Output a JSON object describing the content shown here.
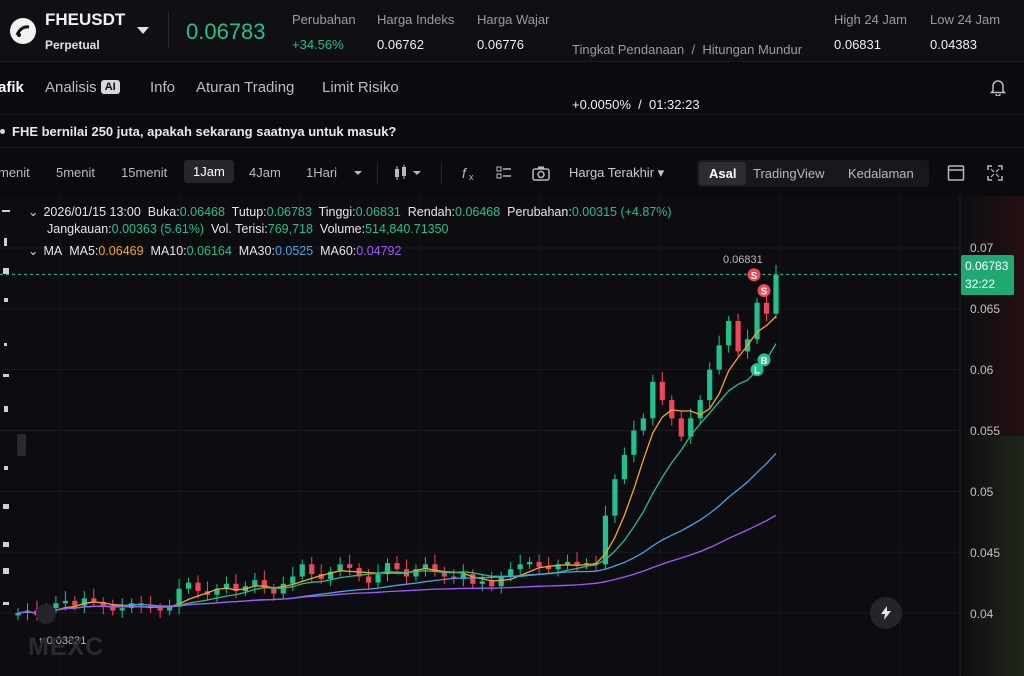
{
  "ticker": {
    "symbol": "FHEUSDT",
    "contract_type": "Perpetual",
    "last_price": "0.06783",
    "stats": [
      {
        "label": "Perubahan",
        "value": "+34.56%"
      },
      {
        "label": "Harga Indeks",
        "value": "0.06762"
      },
      {
        "label": "Harga Wajar",
        "value": "0.06776"
      },
      {
        "label": "Tingkat Pendanaan  /  Hitungan Mundur",
        "value": "+0.0050%  /  01:32:23"
      },
      {
        "label": "High 24 Jam",
        "value": "0.06831"
      },
      {
        "label": "Low 24 Jam",
        "value": "0.04383"
      }
    ]
  },
  "tabs": {
    "items": [
      "afik",
      "Analisis",
      "Info",
      "Aturan Trading",
      "Limit Risiko"
    ],
    "ai_badge": "AI",
    "active": "afik"
  },
  "news": {
    "text": "FHE bernilai 250 juta, apakah sekarang saatnya untuk masuk?"
  },
  "toolbar": {
    "timeframes": [
      "menit",
      "5menit",
      "15menit",
      "1Jam",
      "4Jam",
      "1Hari"
    ],
    "active_timeframe": "1Jam",
    "price_type": "Harga Terakhir",
    "views": [
      "Asal",
      "TradingView",
      "Kedalaman"
    ],
    "active_view": "Asal"
  },
  "legend": {
    "date": "2026/01/15 13:00",
    "open_label": "Buka:",
    "open": "0.06468",
    "close_label": "Tutup:",
    "close": "0.06783",
    "high_label": "Tinggi:",
    "high": "0.06831",
    "low_label": "Rendah:",
    "low": "0.06468",
    "change_label": "Perubahan:",
    "change": "0.00315 (+4.87%)",
    "range_label": "Jangkauan:",
    "range": "0.00363 (5.61%)",
    "volfilled_label": "Vol. Terisi:",
    "volfilled": "769,718",
    "volume_label": "Volume:",
    "volume": "514,840.71350",
    "ma_label": "MA",
    "ma5_label": "MA5:",
    "ma5": "0.06469",
    "ma10_label": "MA10:",
    "ma10": "0.06164",
    "ma30_label": "MA30:",
    "ma30": "0.0525",
    "ma60_label": "MA60:",
    "ma60": "0.04792"
  },
  "price_axis": {
    "ticks": [
      "0.07",
      "0.065",
      "0.06",
      "0.055",
      "0.05",
      "0.045",
      "0.04"
    ],
    "current_price": "0.06783",
    "countdown": "32:22"
  },
  "markers": {
    "high": "0.06831",
    "low": "0.03831"
  },
  "watermark": "MEXC",
  "colors": {
    "up": "#22c08a",
    "down": "#f0465a",
    "ma5": "#f5a623",
    "ma10": "#22c08a",
    "ma30": "#4aa3df",
    "ma60": "#a259ff"
  },
  "chart_data": {
    "type": "candlestick",
    "interval": "1Jam",
    "y_range": [
      0.0385,
      0.0725
    ],
    "notes": "approximate close values read from chart, left to right",
    "close": [
      0.04,
      0.0402,
      0.0398,
      0.0404,
      0.0408,
      0.041,
      0.0406,
      0.0412,
      0.0409,
      0.0405,
      0.0402,
      0.0404,
      0.0408,
      0.0406,
      0.0404,
      0.0402,
      0.0405,
      0.042,
      0.0425,
      0.0418,
      0.0415,
      0.042,
      0.0424,
      0.0418,
      0.0422,
      0.0427,
      0.042,
      0.0416,
      0.0424,
      0.043,
      0.044,
      0.0432,
      0.0428,
      0.0434,
      0.044,
      0.0437,
      0.043,
      0.0425,
      0.0432,
      0.0441,
      0.0436,
      0.043,
      0.0436,
      0.044,
      0.0434,
      0.043,
      0.0428,
      0.0432,
      0.0424,
      0.0426,
      0.0422,
      0.043,
      0.0436,
      0.044,
      0.0442,
      0.0438,
      0.0436,
      0.044,
      0.0442,
      0.044,
      0.0441,
      0.044,
      0.048,
      0.051,
      0.053,
      0.055,
      0.056,
      0.059,
      0.0575,
      0.056,
      0.0545,
      0.056,
      0.0575,
      0.06,
      0.062,
      0.064,
      0.0615,
      0.0625,
      0.0655,
      0.0646,
      0.0678
    ],
    "ma5_last": 0.06469,
    "ma10_last": 0.06164,
    "ma30_last": 0.0525,
    "ma60_last": 0.04792
  }
}
